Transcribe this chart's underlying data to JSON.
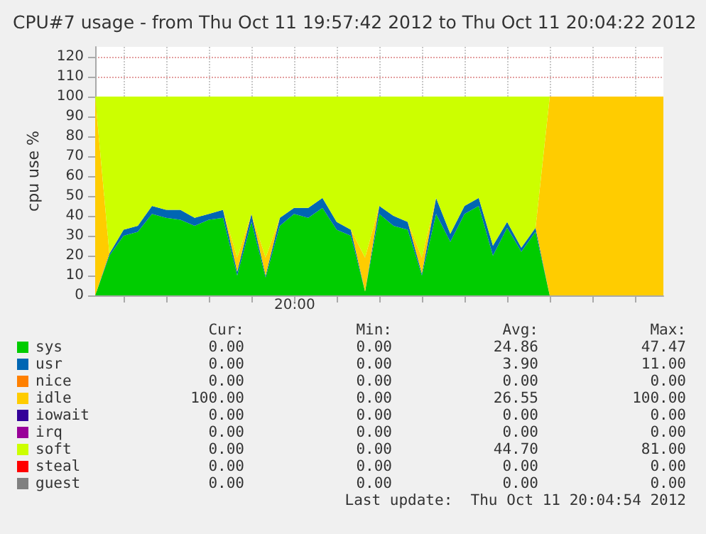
{
  "chart_data": {
    "type": "area",
    "stacked": true,
    "title": "CPU#7 usage - from Thu Oct 11 19:57:42 2012 to Thu Oct 11 20:04:22 2012",
    "ylabel": "cpu use %",
    "categories": [
      null,
      null,
      null,
      null,
      null,
      null,
      null,
      null,
      null,
      null,
      null,
      null,
      null,
      null,
      null,
      null,
      null,
      null,
      null,
      null,
      null,
      null,
      null,
      null,
      null,
      null,
      null,
      null,
      null,
      null,
      null,
      null,
      null,
      null,
      null,
      null,
      null,
      null,
      null,
      null,
      null
    ],
    "series": [
      {
        "name": "sys",
        "color": "#00cc00",
        "values": [
          0,
          20,
          30,
          32,
          41,
          39,
          38,
          35,
          38,
          39,
          10,
          37,
          9,
          35,
          41,
          39,
          44,
          33,
          30,
          2,
          41,
          35,
          33,
          10,
          41,
          27,
          41,
          45,
          20,
          34,
          22,
          32,
          0,
          0,
          0,
          0,
          0,
          0,
          0,
          0,
          0
        ]
      },
      {
        "name": "usr",
        "color": "#0066b3",
        "values": [
          0,
          1,
          3,
          3,
          4,
          4,
          5,
          4,
          3,
          4,
          2,
          4,
          1,
          4,
          3,
          5,
          5,
          4,
          3,
          0,
          4,
          5,
          4,
          1,
          8,
          4,
          4,
          4,
          5,
          3,
          2,
          2,
          0,
          0,
          0,
          0,
          0,
          0,
          0,
          0,
          0
        ]
      },
      {
        "name": "nice",
        "color": "#ff8000",
        "values": [
          null,
          null,
          null,
          null,
          null,
          null,
          null,
          null,
          null,
          null,
          null,
          null,
          null,
          null,
          null,
          null,
          null,
          null,
          null,
          null,
          null,
          null,
          null,
          null,
          null,
          null,
          null,
          null,
          null,
          null,
          null,
          null,
          null,
          null,
          null,
          null,
          null,
          null,
          null,
          null,
          null
        ]
      },
      {
        "name": "idle",
        "color": "#ffcc00",
        "values": [
          100,
          0,
          0,
          0,
          0,
          0,
          0,
          0,
          0,
          0,
          7,
          0,
          9,
          0,
          0,
          0,
          0,
          0,
          0,
          17,
          0,
          0,
          0,
          8,
          0,
          0,
          0,
          0,
          0,
          0,
          0,
          0,
          100,
          100,
          100,
          100,
          100,
          100,
          100,
          100,
          100
        ]
      },
      {
        "name": "iowait",
        "color": "#330099",
        "values": [
          null,
          null,
          null,
          null,
          null,
          null,
          null,
          null,
          null,
          null,
          null,
          null,
          null,
          null,
          null,
          null,
          null,
          null,
          null,
          null,
          null,
          null,
          null,
          null,
          null,
          null,
          null,
          null,
          null,
          null,
          null,
          null,
          null,
          null,
          null,
          null,
          null,
          null,
          null,
          null,
          null
        ]
      },
      {
        "name": "irq",
        "color": "#990099",
        "values": [
          null,
          null,
          null,
          null,
          null,
          null,
          null,
          null,
          null,
          null,
          null,
          null,
          null,
          null,
          null,
          null,
          null,
          null,
          null,
          null,
          null,
          null,
          null,
          null,
          null,
          null,
          null,
          null,
          null,
          null,
          null,
          null,
          null,
          null,
          null,
          null,
          null,
          null,
          null,
          null,
          null
        ]
      },
      {
        "name": "soft",
        "color": "#ccff00",
        "values": [
          0,
          79,
          67,
          65,
          55,
          57,
          57,
          61,
          59,
          57,
          81,
          59,
          81,
          61,
          56,
          56,
          51,
          63,
          67,
          81,
          55,
          60,
          63,
          81,
          51,
          69,
          55,
          51,
          75,
          63,
          76,
          66,
          0,
          0,
          0,
          0,
          0,
          0,
          0,
          0,
          0
        ]
      },
      {
        "name": "steal",
        "color": "#ff0000",
        "values": [
          null,
          null,
          null,
          null,
          null,
          null,
          null,
          null,
          null,
          null,
          null,
          null,
          null,
          null,
          null,
          null,
          null,
          null,
          null,
          null,
          null,
          null,
          null,
          null,
          null,
          null,
          null,
          null,
          null,
          null,
          null,
          null,
          null,
          null,
          null,
          null,
          null,
          null,
          null,
          null,
          null
        ]
      },
      {
        "name": "guest",
        "color": "#808080",
        "values": [
          null,
          null,
          null,
          null,
          null,
          null,
          null,
          null,
          null,
          null,
          null,
          null,
          null,
          null,
          null,
          null,
          null,
          null,
          null,
          null,
          null,
          null,
          null,
          null,
          null,
          null,
          null,
          null,
          null,
          null,
          null,
          null,
          null,
          null,
          null,
          null,
          null,
          null,
          null,
          null,
          null
        ]
      }
    ],
    "ylim": [
      0,
      125
    ],
    "yticks": [
      0,
      10,
      20,
      30,
      40,
      50,
      60,
      70,
      80,
      90,
      100,
      110,
      120
    ],
    "grid": true,
    "legend": "bottom left",
    "marker": "none",
    "annotations": [
      "20:00",
      "Cur:",
      "Min:",
      "Avg:",
      "Max:",
      "0.00",
      "0.00",
      "24.86",
      "47.47",
      "0.00",
      "0.00",
      "3.90",
      "11.00",
      "0.00",
      "0.00",
      "0.00",
      "0.00",
      "100.00",
      "0.00",
      "26.55",
      "100.00",
      "0.00",
      "0.00",
      "0.00",
      "0.00",
      "0.00",
      "0.00",
      "0.00",
      "0.00",
      "0.00",
      "0.00",
      "44.70",
      "81.00",
      "0.00",
      "0.00",
      "0.00",
      "0.00",
      "0.00",
      "0.00",
      "0.00",
      "0.00",
      "Last update:  Thu Oct 11 20:04:54 2012"
    ]
  }
}
